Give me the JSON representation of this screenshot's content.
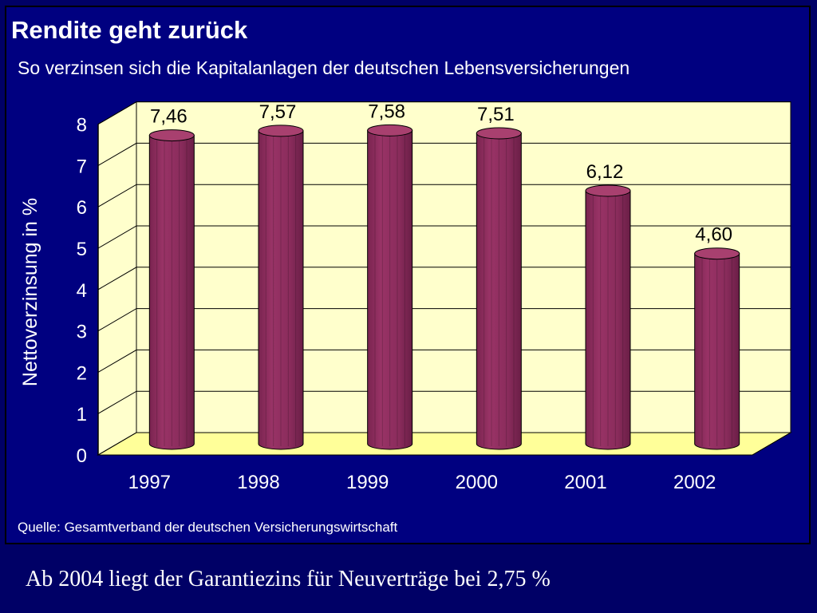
{
  "header": {
    "title": "Rendite geht zurück",
    "subtitle": "So verzinsen sich die Kapitalanlagen der deutschen Lebensversicherungen"
  },
  "source": "Quelle: Gesamtverband der deutschen Versicherungswirtschaft",
  "footer": "Ab 2004 liegt der Garantiezins für Neuverträge bei 2,75 %",
  "colors": {
    "background": "#000080",
    "plot_wall": "#ffffcc",
    "plot_floor": "#ffff99",
    "bar": "#993366",
    "text": "#ffffff",
    "data_label": "#000000"
  },
  "chart_data": {
    "type": "bar",
    "style": "3d-cylinder",
    "categories": [
      "1997",
      "1998",
      "1999",
      "2000",
      "2001",
      "2002"
    ],
    "values": [
      7.46,
      7.57,
      7.58,
      7.51,
      6.12,
      4.6
    ],
    "data_labels": [
      "7,46",
      "7,57",
      "7,58",
      "7,51",
      "6,12",
      "4,60"
    ],
    "ylabel": "Nettoverzinsung in %",
    "xlabel": "",
    "ylim": [
      0,
      8
    ],
    "yticks": [
      "0",
      "1",
      "2",
      "3",
      "4",
      "5",
      "6",
      "7",
      "8"
    ],
    "grid": true,
    "legend": "none"
  }
}
